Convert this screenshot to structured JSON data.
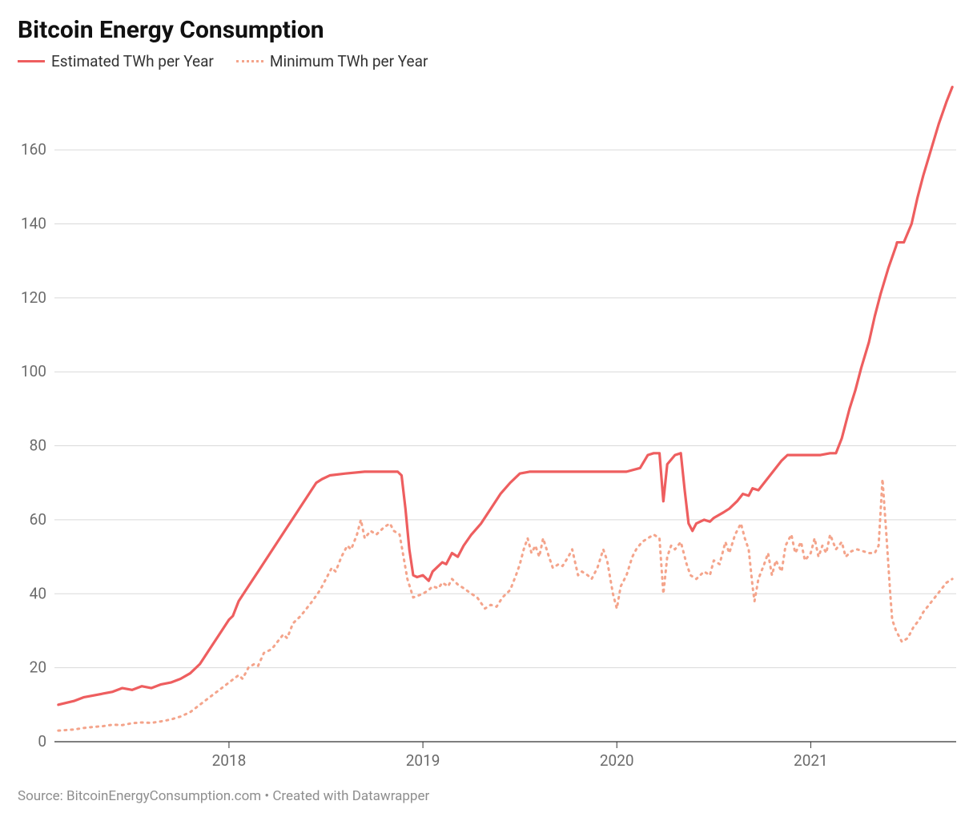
{
  "title": "Bitcoin Energy Consumption",
  "legend": {
    "estimated": "Estimated TWh per Year",
    "minimum": "Minimum TWh per Year"
  },
  "footer": "Source: BitcoinEnergyConsumption.com • Created with Datawrapper",
  "chart": {
    "type": "line",
    "background_color": "#ffffff",
    "title_fontsize": 30,
    "legend_fontsize": 19,
    "axis_fontsize": 19,
    "footer_fontsize": 17,
    "footer_color": "#8e8e8e",
    "grid_color": "#d9d9d9",
    "axis_line_color": "#333333",
    "tick_label_color": "#6b6b6b",
    "series": {
      "estimated": {
        "color": "#ee5e5f",
        "line_width": 3.2,
        "style": "solid"
      },
      "minimum": {
        "color": "#f4a48b",
        "line_width": 3.0,
        "style": "dotted"
      }
    },
    "x_axis": {
      "min": 2017.1,
      "max": 2021.75,
      "ticks": [
        {
          "value": 2018,
          "label": "2018"
        },
        {
          "value": 2019,
          "label": "2019"
        },
        {
          "value": 2020,
          "label": "2020"
        },
        {
          "value": 2021,
          "label": "2021"
        }
      ]
    },
    "y_axis": {
      "min": 0,
      "max": 178,
      "ticks": [
        {
          "value": 0,
          "label": "0"
        },
        {
          "value": 20,
          "label": "20"
        },
        {
          "value": 40,
          "label": "40"
        },
        {
          "value": 60,
          "label": "60"
        },
        {
          "value": 80,
          "label": "80"
        },
        {
          "value": 100,
          "label": "100"
        },
        {
          "value": 120,
          "label": "120"
        },
        {
          "value": 140,
          "label": "140"
        },
        {
          "value": 160,
          "label": "160"
        }
      ]
    },
    "data": {
      "estimated": [
        {
          "x": 2017.12,
          "y": 10
        },
        {
          "x": 2017.2,
          "y": 11
        },
        {
          "x": 2017.25,
          "y": 12
        },
        {
          "x": 2017.3,
          "y": 12.5
        },
        {
          "x": 2017.35,
          "y": 13
        },
        {
          "x": 2017.4,
          "y": 13.5
        },
        {
          "x": 2017.45,
          "y": 14.5
        },
        {
          "x": 2017.5,
          "y": 14
        },
        {
          "x": 2017.55,
          "y": 15
        },
        {
          "x": 2017.6,
          "y": 14.5
        },
        {
          "x": 2017.65,
          "y": 15.5
        },
        {
          "x": 2017.7,
          "y": 16
        },
        {
          "x": 2017.75,
          "y": 17
        },
        {
          "x": 2017.8,
          "y": 18.5
        },
        {
          "x": 2017.85,
          "y": 21
        },
        {
          "x": 2017.9,
          "y": 25
        },
        {
          "x": 2017.95,
          "y": 29
        },
        {
          "x": 2018.0,
          "y": 33
        },
        {
          "x": 2018.02,
          "y": 34
        },
        {
          "x": 2018.05,
          "y": 38
        },
        {
          "x": 2018.1,
          "y": 42
        },
        {
          "x": 2018.15,
          "y": 46
        },
        {
          "x": 2018.2,
          "y": 50
        },
        {
          "x": 2018.25,
          "y": 54
        },
        {
          "x": 2018.3,
          "y": 58
        },
        {
          "x": 2018.35,
          "y": 62
        },
        {
          "x": 2018.4,
          "y": 66
        },
        {
          "x": 2018.45,
          "y": 70
        },
        {
          "x": 2018.48,
          "y": 71
        },
        {
          "x": 2018.52,
          "y": 72
        },
        {
          "x": 2018.6,
          "y": 72.5
        },
        {
          "x": 2018.7,
          "y": 73
        },
        {
          "x": 2018.8,
          "y": 73
        },
        {
          "x": 2018.87,
          "y": 73
        },
        {
          "x": 2018.89,
          "y": 72
        },
        {
          "x": 2018.91,
          "y": 63
        },
        {
          "x": 2018.93,
          "y": 52
        },
        {
          "x": 2018.95,
          "y": 45
        },
        {
          "x": 2018.97,
          "y": 44.5
        },
        {
          "x": 2019.0,
          "y": 45
        },
        {
          "x": 2019.03,
          "y": 43.5
        },
        {
          "x": 2019.05,
          "y": 46
        },
        {
          "x": 2019.07,
          "y": 47
        },
        {
          "x": 2019.1,
          "y": 48.5
        },
        {
          "x": 2019.12,
          "y": 48
        },
        {
          "x": 2019.15,
          "y": 51
        },
        {
          "x": 2019.18,
          "y": 50
        },
        {
          "x": 2019.21,
          "y": 53
        },
        {
          "x": 2019.25,
          "y": 56
        },
        {
          "x": 2019.3,
          "y": 59
        },
        {
          "x": 2019.35,
          "y": 63
        },
        {
          "x": 2019.4,
          "y": 67
        },
        {
          "x": 2019.45,
          "y": 70
        },
        {
          "x": 2019.5,
          "y": 72.5
        },
        {
          "x": 2019.55,
          "y": 73
        },
        {
          "x": 2019.65,
          "y": 73
        },
        {
          "x": 2019.75,
          "y": 73
        },
        {
          "x": 2019.85,
          "y": 73
        },
        {
          "x": 2019.95,
          "y": 73
        },
        {
          "x": 2020.05,
          "y": 73
        },
        {
          "x": 2020.12,
          "y": 74
        },
        {
          "x": 2020.16,
          "y": 77.5
        },
        {
          "x": 2020.19,
          "y": 78
        },
        {
          "x": 2020.22,
          "y": 78
        },
        {
          "x": 2020.24,
          "y": 65
        },
        {
          "x": 2020.26,
          "y": 75
        },
        {
          "x": 2020.3,
          "y": 77.5
        },
        {
          "x": 2020.33,
          "y": 78
        },
        {
          "x": 2020.35,
          "y": 68
        },
        {
          "x": 2020.37,
          "y": 59
        },
        {
          "x": 2020.39,
          "y": 57
        },
        {
          "x": 2020.41,
          "y": 59
        },
        {
          "x": 2020.45,
          "y": 60
        },
        {
          "x": 2020.48,
          "y": 59.5
        },
        {
          "x": 2020.5,
          "y": 60.5
        },
        {
          "x": 2020.55,
          "y": 62
        },
        {
          "x": 2020.58,
          "y": 63
        },
        {
          "x": 2020.62,
          "y": 65
        },
        {
          "x": 2020.65,
          "y": 67
        },
        {
          "x": 2020.68,
          "y": 66.5
        },
        {
          "x": 2020.7,
          "y": 68.5
        },
        {
          "x": 2020.73,
          "y": 68
        },
        {
          "x": 2020.76,
          "y": 70
        },
        {
          "x": 2020.79,
          "y": 72
        },
        {
          "x": 2020.82,
          "y": 74
        },
        {
          "x": 2020.85,
          "y": 76
        },
        {
          "x": 2020.88,
          "y": 77.5
        },
        {
          "x": 2020.92,
          "y": 77.5
        },
        {
          "x": 2021.0,
          "y": 77.5
        },
        {
          "x": 2021.05,
          "y": 77.5
        },
        {
          "x": 2021.1,
          "y": 78
        },
        {
          "x": 2021.13,
          "y": 78
        },
        {
          "x": 2021.16,
          "y": 82
        },
        {
          "x": 2021.18,
          "y": 86
        },
        {
          "x": 2021.2,
          "y": 90
        },
        {
          "x": 2021.23,
          "y": 95
        },
        {
          "x": 2021.26,
          "y": 101
        },
        {
          "x": 2021.3,
          "y": 108
        },
        {
          "x": 2021.33,
          "y": 115
        },
        {
          "x": 2021.36,
          "y": 121
        },
        {
          "x": 2021.4,
          "y": 128
        },
        {
          "x": 2021.42,
          "y": 131
        },
        {
          "x": 2021.44,
          "y": 134
        },
        {
          "x": 2021.445,
          "y": 135
        },
        {
          "x": 2021.48,
          "y": 135
        },
        {
          "x": 2021.52,
          "y": 140
        },
        {
          "x": 2021.55,
          "y": 147
        },
        {
          "x": 2021.58,
          "y": 153
        },
        {
          "x": 2021.62,
          "y": 160
        },
        {
          "x": 2021.66,
          "y": 167
        },
        {
          "x": 2021.7,
          "y": 173
        },
        {
          "x": 2021.73,
          "y": 177
        }
      ],
      "minimum": [
        {
          "x": 2017.12,
          "y": 3
        },
        {
          "x": 2017.2,
          "y": 3.3
        },
        {
          "x": 2017.25,
          "y": 3.7
        },
        {
          "x": 2017.3,
          "y": 4
        },
        {
          "x": 2017.35,
          "y": 4.2
        },
        {
          "x": 2017.4,
          "y": 4.6
        },
        {
          "x": 2017.45,
          "y": 4.5
        },
        {
          "x": 2017.5,
          "y": 5
        },
        {
          "x": 2017.55,
          "y": 5.2
        },
        {
          "x": 2017.6,
          "y": 5.1
        },
        {
          "x": 2017.65,
          "y": 5.5
        },
        {
          "x": 2017.7,
          "y": 6
        },
        {
          "x": 2017.75,
          "y": 6.8
        },
        {
          "x": 2017.8,
          "y": 8
        },
        {
          "x": 2017.85,
          "y": 10
        },
        {
          "x": 2017.9,
          "y": 12
        },
        {
          "x": 2017.95,
          "y": 14
        },
        {
          "x": 2018.0,
          "y": 16
        },
        {
          "x": 2018.05,
          "y": 18
        },
        {
          "x": 2018.07,
          "y": 17
        },
        {
          "x": 2018.1,
          "y": 20
        },
        {
          "x": 2018.13,
          "y": 21
        },
        {
          "x": 2018.15,
          "y": 20.5
        },
        {
          "x": 2018.18,
          "y": 24
        },
        {
          "x": 2018.22,
          "y": 25
        },
        {
          "x": 2018.25,
          "y": 27
        },
        {
          "x": 2018.28,
          "y": 29
        },
        {
          "x": 2018.3,
          "y": 28
        },
        {
          "x": 2018.33,
          "y": 32
        },
        {
          "x": 2018.37,
          "y": 34
        },
        {
          "x": 2018.4,
          "y": 36
        },
        {
          "x": 2018.43,
          "y": 38
        },
        {
          "x": 2018.47,
          "y": 41
        },
        {
          "x": 2018.5,
          "y": 44
        },
        {
          "x": 2018.53,
          "y": 47
        },
        {
          "x": 2018.55,
          "y": 46
        },
        {
          "x": 2018.58,
          "y": 50
        },
        {
          "x": 2018.61,
          "y": 53
        },
        {
          "x": 2018.63,
          "y": 52
        },
        {
          "x": 2018.66,
          "y": 56
        },
        {
          "x": 2018.68,
          "y": 60
        },
        {
          "x": 2018.7,
          "y": 55
        },
        {
          "x": 2018.73,
          "y": 57
        },
        {
          "x": 2018.76,
          "y": 56
        },
        {
          "x": 2018.8,
          "y": 58
        },
        {
          "x": 2018.83,
          "y": 59
        },
        {
          "x": 2018.85,
          "y": 57
        },
        {
          "x": 2018.88,
          "y": 56
        },
        {
          "x": 2018.9,
          "y": 50
        },
        {
          "x": 2018.92,
          "y": 44
        },
        {
          "x": 2018.95,
          "y": 39
        },
        {
          "x": 2019.0,
          "y": 40
        },
        {
          "x": 2019.03,
          "y": 41
        },
        {
          "x": 2019.05,
          "y": 42
        },
        {
          "x": 2019.08,
          "y": 41.5
        },
        {
          "x": 2019.1,
          "y": 43
        },
        {
          "x": 2019.13,
          "y": 42
        },
        {
          "x": 2019.15,
          "y": 44
        },
        {
          "x": 2019.18,
          "y": 42.5
        },
        {
          "x": 2019.21,
          "y": 41.5
        },
        {
          "x": 2019.25,
          "y": 40
        },
        {
          "x": 2019.28,
          "y": 39
        },
        {
          "x": 2019.32,
          "y": 36
        },
        {
          "x": 2019.35,
          "y": 37
        },
        {
          "x": 2019.38,
          "y": 36.5
        },
        {
          "x": 2019.41,
          "y": 39
        },
        {
          "x": 2019.45,
          "y": 41
        },
        {
          "x": 2019.48,
          "y": 45
        },
        {
          "x": 2019.5,
          "y": 48
        },
        {
          "x": 2019.52,
          "y": 52
        },
        {
          "x": 2019.54,
          "y": 55
        },
        {
          "x": 2019.56,
          "y": 51
        },
        {
          "x": 2019.58,
          "y": 53
        },
        {
          "x": 2019.6,
          "y": 50
        },
        {
          "x": 2019.62,
          "y": 55
        },
        {
          "x": 2019.65,
          "y": 50
        },
        {
          "x": 2019.67,
          "y": 47
        },
        {
          "x": 2019.7,
          "y": 48
        },
        {
          "x": 2019.72,
          "y": 47.5
        },
        {
          "x": 2019.75,
          "y": 50
        },
        {
          "x": 2019.77,
          "y": 52
        },
        {
          "x": 2019.8,
          "y": 45
        },
        {
          "x": 2019.82,
          "y": 46
        },
        {
          "x": 2019.85,
          "y": 45
        },
        {
          "x": 2019.87,
          "y": 44
        },
        {
          "x": 2019.9,
          "y": 47
        },
        {
          "x": 2019.93,
          "y": 52
        },
        {
          "x": 2019.95,
          "y": 49
        },
        {
          "x": 2019.98,
          "y": 40
        },
        {
          "x": 2020.0,
          "y": 36
        },
        {
          "x": 2020.02,
          "y": 42
        },
        {
          "x": 2020.05,
          "y": 45
        },
        {
          "x": 2020.08,
          "y": 50
        },
        {
          "x": 2020.1,
          "y": 52
        },
        {
          "x": 2020.13,
          "y": 54
        },
        {
          "x": 2020.16,
          "y": 55
        },
        {
          "x": 2020.19,
          "y": 56
        },
        {
          "x": 2020.22,
          "y": 55
        },
        {
          "x": 2020.24,
          "y": 40
        },
        {
          "x": 2020.26,
          "y": 50
        },
        {
          "x": 2020.28,
          "y": 53
        },
        {
          "x": 2020.3,
          "y": 52
        },
        {
          "x": 2020.33,
          "y": 54
        },
        {
          "x": 2020.36,
          "y": 48
        },
        {
          "x": 2020.38,
          "y": 45
        },
        {
          "x": 2020.41,
          "y": 44
        },
        {
          "x": 2020.45,
          "y": 46
        },
        {
          "x": 2020.48,
          "y": 45
        },
        {
          "x": 2020.5,
          "y": 49
        },
        {
          "x": 2020.53,
          "y": 48
        },
        {
          "x": 2020.56,
          "y": 54
        },
        {
          "x": 2020.58,
          "y": 51
        },
        {
          "x": 2020.61,
          "y": 56
        },
        {
          "x": 2020.64,
          "y": 59
        },
        {
          "x": 2020.66,
          "y": 55
        },
        {
          "x": 2020.68,
          "y": 52
        },
        {
          "x": 2020.7,
          "y": 42
        },
        {
          "x": 2020.71,
          "y": 38
        },
        {
          "x": 2020.73,
          "y": 44
        },
        {
          "x": 2020.76,
          "y": 48
        },
        {
          "x": 2020.78,
          "y": 51
        },
        {
          "x": 2020.8,
          "y": 45
        },
        {
          "x": 2020.82,
          "y": 49
        },
        {
          "x": 2020.85,
          "y": 46
        },
        {
          "x": 2020.87,
          "y": 53
        },
        {
          "x": 2020.9,
          "y": 56
        },
        {
          "x": 2020.92,
          "y": 51
        },
        {
          "x": 2020.95,
          "y": 54
        },
        {
          "x": 2020.97,
          "y": 49
        },
        {
          "x": 2021.0,
          "y": 51
        },
        {
          "x": 2021.02,
          "y": 55
        },
        {
          "x": 2021.04,
          "y": 50
        },
        {
          "x": 2021.06,
          "y": 53
        },
        {
          "x": 2021.08,
          "y": 51
        },
        {
          "x": 2021.1,
          "y": 56
        },
        {
          "x": 2021.13,
          "y": 52
        },
        {
          "x": 2021.16,
          "y": 54
        },
        {
          "x": 2021.18,
          "y": 50
        },
        {
          "x": 2021.21,
          "y": 51.5
        },
        {
          "x": 2021.24,
          "y": 52
        },
        {
          "x": 2021.27,
          "y": 51.5
        },
        {
          "x": 2021.3,
          "y": 51
        },
        {
          "x": 2021.33,
          "y": 51
        },
        {
          "x": 2021.35,
          "y": 53
        },
        {
          "x": 2021.37,
          "y": 71
        },
        {
          "x": 2021.39,
          "y": 56
        },
        {
          "x": 2021.41,
          "y": 40
        },
        {
          "x": 2021.42,
          "y": 33
        },
        {
          "x": 2021.44,
          "y": 30
        },
        {
          "x": 2021.47,
          "y": 27
        },
        {
          "x": 2021.5,
          "y": 28
        },
        {
          "x": 2021.53,
          "y": 31
        },
        {
          "x": 2021.56,
          "y": 33
        },
        {
          "x": 2021.58,
          "y": 35
        },
        {
          "x": 2021.61,
          "y": 37
        },
        {
          "x": 2021.64,
          "y": 39
        },
        {
          "x": 2021.67,
          "y": 41
        },
        {
          "x": 2021.7,
          "y": 43
        },
        {
          "x": 2021.73,
          "y": 44
        }
      ]
    }
  }
}
